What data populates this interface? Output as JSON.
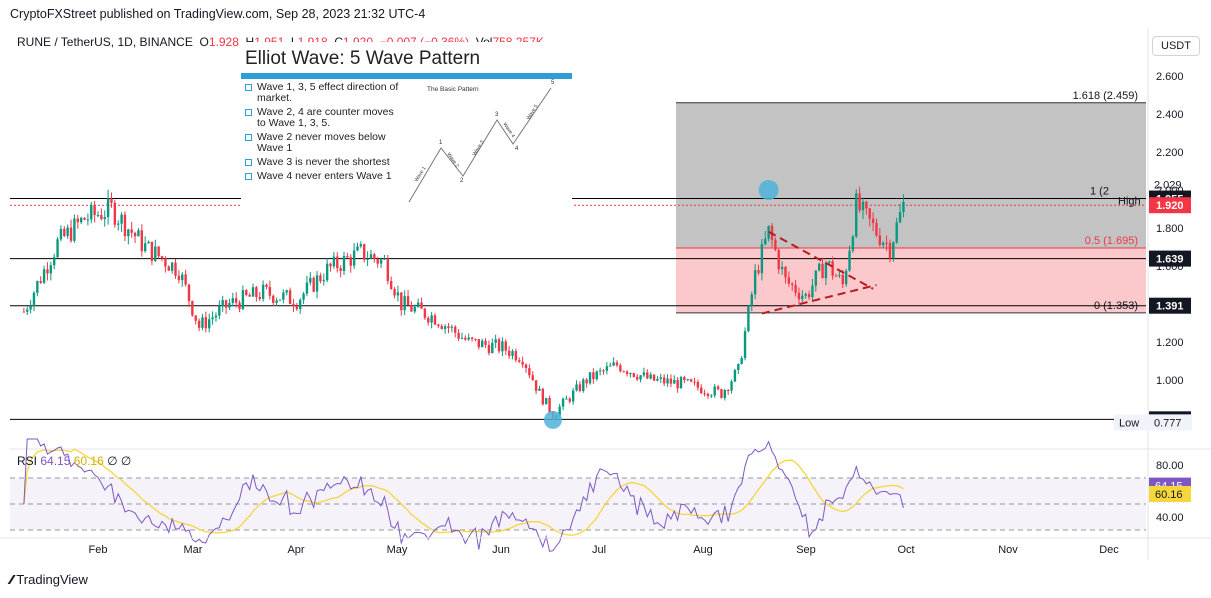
{
  "publisher": "CryptoFXStreet published on TradingView.com, Sep 28, 2023 21:32 UTC-4",
  "footer": "TradingView",
  "currency_button": "USDT",
  "symbol": {
    "name": "RUNE / TetherUS, 1D, BINANCE",
    "o_label": "O",
    "o": "1.928",
    "h_label": "H",
    "h": "1.951",
    "l_label": "L",
    "l": "1.918",
    "c_label": "C",
    "c": "1.920",
    "change": "−0.007 (−0.36%)",
    "vol_label": "Vol",
    "vol": "758.257K"
  },
  "rsi": {
    "label": "RSI",
    "value": "64.15",
    "ma": "60.16",
    "extra1": "∅",
    "extra2": "∅"
  },
  "elliot": {
    "title": "Elliot Wave: 5 Wave Pattern",
    "subtitle": "The Basic Pattern",
    "bullets": [
      "Wave 1, 3, 5 effect direction of market.",
      "Wave 2, 4 are counter moves to Wave 1, 3, 5.",
      "Wave 2 never moves below Wave 1",
      "Wave 3 is never the shortest",
      "Wave 4 never enters Wave 1"
    ],
    "points": [
      "1",
      "2",
      "3",
      "4",
      "5"
    ],
    "wave_labels": [
      "Wave 1",
      "Wave 2",
      "Wave 3",
      "Wave 4",
      "Wave 5"
    ]
  },
  "colors": {
    "up": "#089981",
    "down": "#f23645",
    "rsi": "#7e57c2",
    "rsi_ma": "#f5d63b",
    "grey_zone": "#bdbdbd",
    "red_zone": "#fbc9cc"
  },
  "chart_data": {
    "type": "candlestick",
    "y_ticks": [
      "2.600",
      "2.400",
      "2.200",
      "2.000",
      "1.800",
      "1.600",
      "1.400",
      "1.200",
      "1.000",
      "0.800"
    ],
    "x_ticks": [
      "Feb",
      "Mar",
      "Apr",
      "May",
      "Jun",
      "Jul",
      "Aug",
      "Sep",
      "Oct",
      "Nov",
      "Dec"
    ],
    "ylim": [
      0.72,
      2.7
    ],
    "price_labels": {
      "high_label": "High",
      "high": "2.029",
      "low_label": "Low",
      "low": "0.777",
      "resistance": "1.955",
      "last": "1.920",
      "support_mid": "1.639",
      "support": "1.391",
      "bottom": "0.793"
    },
    "horizontal_levels": [
      1.955,
      1.639,
      1.391,
      0.793
    ],
    "fibonacci": [
      {
        "label": "1.618 (2.459)",
        "value": 2.459
      },
      {
        "label": "1 (2",
        "value": 1.955
      },
      {
        "label": "0.5 (1.695)",
        "value": 1.695
      },
      {
        "label": "0 (1.353)",
        "value": 1.353
      }
    ],
    "rsi_ticks": [
      "80.00",
      "40.00"
    ],
    "rsi_last": "64.15",
    "rsi_ma_last": "60.16",
    "anchors": [
      {
        "date": "Jan 10",
        "price": 1.36
      },
      {
        "date": "Jan 20",
        "price": 1.72
      },
      {
        "date": "Jan 28",
        "price": 1.85
      },
      {
        "date": "Feb 05",
        "price": 1.9
      },
      {
        "date": "Feb 15",
        "price": 1.7
      },
      {
        "date": "Feb 25",
        "price": 1.58
      },
      {
        "date": "Mar 03",
        "price": 1.28
      },
      {
        "date": "Mar 12",
        "price": 1.4
      },
      {
        "date": "Mar 22",
        "price": 1.46
      },
      {
        "date": "Apr 01",
        "price": 1.42
      },
      {
        "date": "Apr 10",
        "price": 1.58
      },
      {
        "date": "Apr 20",
        "price": 1.67
      },
      {
        "date": "Apr 27",
        "price": 1.62
      },
      {
        "date": "May 02",
        "price": 1.4
      },
      {
        "date": "May 12",
        "price": 1.33
      },
      {
        "date": "May 22",
        "price": 1.2
      },
      {
        "date": "Jun 01",
        "price": 1.17
      },
      {
        "date": "Jun 07",
        "price": 1.12
      },
      {
        "date": "Jun 12",
        "price": 0.93
      },
      {
        "date": "Jun 16",
        "price": 0.82
      },
      {
        "date": "Jun 26",
        "price": 1.0
      },
      {
        "date": "Jul 05",
        "price": 1.08
      },
      {
        "date": "Jul 15",
        "price": 1.0
      },
      {
        "date": "Jul 25",
        "price": 0.98
      },
      {
        "date": "Aug 05",
        "price": 0.93
      },
      {
        "date": "Aug 10",
        "price": 1.05
      },
      {
        "date": "Aug 15",
        "price": 1.55
      },
      {
        "date": "Aug 19",
        "price": 1.78
      },
      {
        "date": "Aug 24",
        "price": 1.52
      },
      {
        "date": "Aug 30",
        "price": 1.44
      },
      {
        "date": "Sep 05",
        "price": 1.62
      },
      {
        "date": "Sep 10",
        "price": 1.5
      },
      {
        "date": "Sep 14",
        "price": 1.92
      },
      {
        "date": "Sep 20",
        "price": 1.78
      },
      {
        "date": "Sep 24",
        "price": 1.7
      },
      {
        "date": "Sep 28",
        "price": 1.92
      }
    ]
  }
}
